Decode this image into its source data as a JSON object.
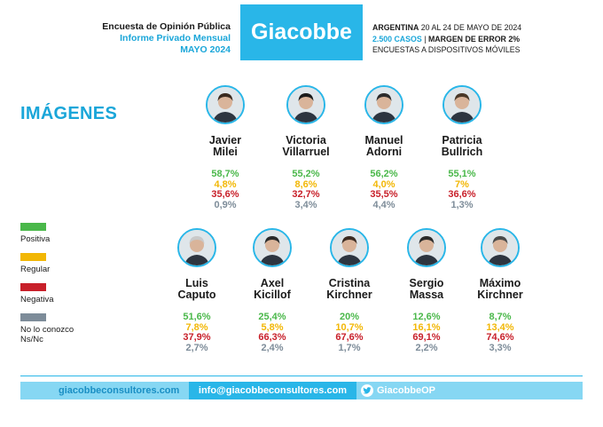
{
  "header": {
    "left": [
      "Encuesta de Opinión Pública",
      "Informe Privado Mensual",
      "MAYO 2024"
    ],
    "brand": "Giacobbe",
    "right_line1_bold": "ARGENTINA",
    "right_line1": " 20 AL 24 DE MAYO DE 2024",
    "right_line2_cases": "2.500 CASOS",
    "right_line2_sep": " | ",
    "right_line2_margin": "MARGEN DE ERROR 2%",
    "right_line3": "ENCUESTAS A DISPOSITIVOS MÓVILES"
  },
  "section_title": "IMÁGENES",
  "colors": {
    "positiva": "#4ab84a",
    "regular": "#f2b705",
    "negativa": "#c8202a",
    "ns": "#7d8c99",
    "accent": "#29b6e8"
  },
  "candidates": [
    {
      "first": "Javier",
      "last": "Milei",
      "positiva": "58,7%",
      "regular": "4,8%",
      "negativa": "35,6%",
      "ns": "0,9%"
    },
    {
      "first": "Victoria",
      "last": "Villarruel",
      "positiva": "55,2%",
      "regular": "8,6%",
      "negativa": "32,7%",
      "ns": "3,4%"
    },
    {
      "first": "Manuel",
      "last": "Adorni",
      "positiva": "56,2%",
      "regular": "4,0%",
      "negativa": "35,5%",
      "ns": "4,4%"
    },
    {
      "first": "Patricia",
      "last": "Bullrich",
      "positiva": "55,1%",
      "regular": "7%",
      "negativa": "36,6%",
      "ns": "1,3%"
    },
    {
      "first": "Luis",
      "last": "Caputo",
      "positiva": "51,6%",
      "regular": "7,8%",
      "negativa": "37,9%",
      "ns": "2,7%"
    },
    {
      "first": "Axel",
      "last": "Kicillof",
      "positiva": "25,4%",
      "regular": "5,8%",
      "negativa": "66,3%",
      "ns": "2,4%"
    },
    {
      "first": "Cristina",
      "last": "Kirchner",
      "positiva": "20%",
      "regular": "10,7%",
      "negativa": "67,6%",
      "ns": "1,7%"
    },
    {
      "first": "Sergio",
      "last": "Massa",
      "positiva": "12,6%",
      "regular": "16,1%",
      "negativa": "69,1%",
      "ns": "2,2%"
    },
    {
      "first": "Máximo",
      "last": "Kirchner",
      "positiva": "8,7%",
      "regular": "13,4%",
      "negativa": "74,6%",
      "ns": "3,3%"
    }
  ],
  "legend": [
    {
      "label": "Positiva"
    },
    {
      "label": "Regular"
    },
    {
      "label": "Negativa"
    },
    {
      "label": "No lo conozco",
      "label2": "Ns/Nc"
    }
  ],
  "footer": {
    "website": "giacobbeconsultores.com",
    "email": "info@giacobbeconsultores.com",
    "twitter": "GiacobbeOP"
  }
}
